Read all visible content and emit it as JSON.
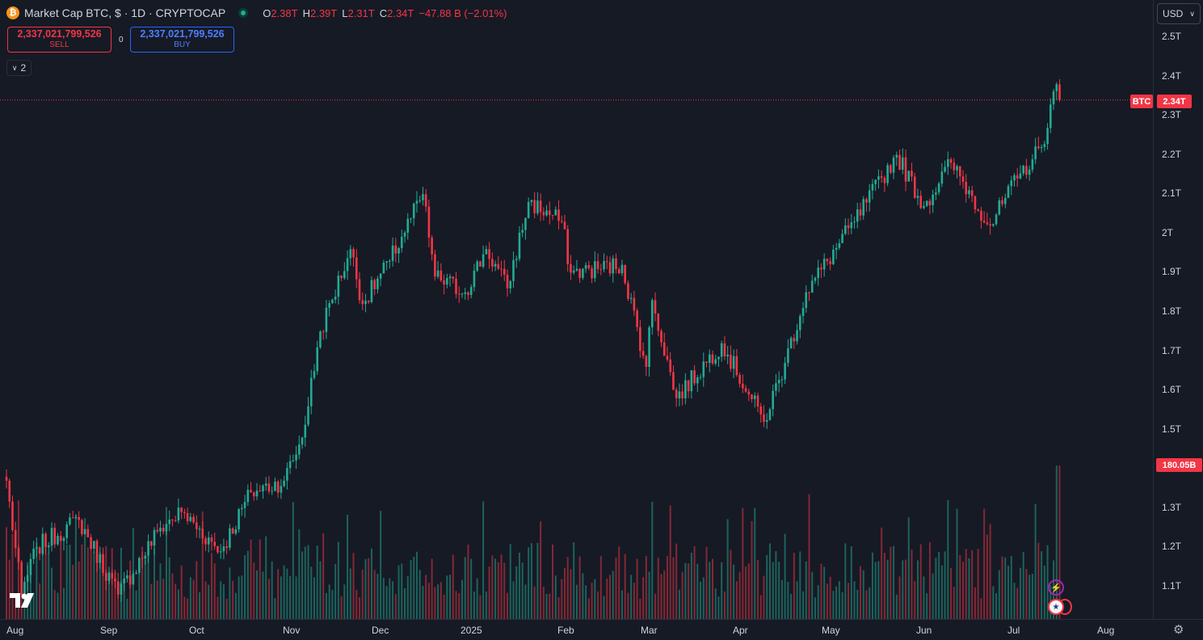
{
  "header": {
    "coin_icon_glyph": "₿",
    "title": "Market Cap BTC, $ · 1D · CRYPTOCAP",
    "ohlc": {
      "o_key": "O",
      "o_val": "2.38T",
      "h_key": "H",
      "h_val": "2.39T",
      "l_key": "L",
      "l_val": "2.31T",
      "c_key": "C",
      "c_val": "2.34T",
      "change": "−47.88 B (−2.01%)"
    }
  },
  "trade": {
    "sell_value": "2,337,021,799,526",
    "sell_label": "SELL",
    "spread": "0",
    "buy_value": "2,337,021,799,526",
    "buy_label": "BUY"
  },
  "indicators_toggle": {
    "count": "2"
  },
  "currency": {
    "selected": "USD"
  },
  "price_axis": {
    "ticks": [
      "2.5T",
      "2.4T",
      "2.3T",
      "2.2T",
      "2.1T",
      "2T",
      "1.9T",
      "1.8T",
      "1.7T",
      "1.6T",
      "1.5T",
      "1.3T",
      "1.2T",
      "1.1T"
    ],
    "last_price_symbol": "BTC",
    "last_price_label": "2.34T",
    "volume_label": "180.05B"
  },
  "time_axis": {
    "labels": [
      "Aug",
      "Sep",
      "Oct",
      "Nov",
      "Dec",
      "2025",
      "Feb",
      "Mar",
      "Apr",
      "May",
      "Jun",
      "Jul",
      "Aug"
    ]
  },
  "colors": {
    "up": "#22ab94",
    "down": "#f23645",
    "background": "#161a25"
  },
  "chart_data": {
    "type": "candlestick",
    "title": "Market Cap BTC, $ · 1D · CRYPTOCAP",
    "unit": "USD (T = trillion)",
    "price_range": [
      1.02,
      2.56
    ],
    "last_close": 2.34,
    "anchors": [
      {
        "date": "2024-07-31",
        "close": 1.37
      },
      {
        "date": "2024-08-05",
        "close": 1.08
      },
      {
        "date": "2024-08-10",
        "close": 1.2
      },
      {
        "date": "2024-08-24",
        "close": 1.27
      },
      {
        "date": "2024-09-06",
        "close": 1.08
      },
      {
        "date": "2024-09-20",
        "close": 1.25
      },
      {
        "date": "2024-09-27",
        "close": 1.29
      },
      {
        "date": "2024-10-10",
        "close": 1.19
      },
      {
        "date": "2024-10-20",
        "close": 1.34
      },
      {
        "date": "2024-10-31",
        "close": 1.37
      },
      {
        "date": "2024-11-06",
        "close": 1.48
      },
      {
        "date": "2024-11-12",
        "close": 1.75
      },
      {
        "date": "2024-11-22",
        "close": 1.96
      },
      {
        "date": "2024-11-26",
        "close": 1.82
      },
      {
        "date": "2024-12-05",
        "close": 1.93
      },
      {
        "date": "2024-12-16",
        "close": 2.1
      },
      {
        "date": "2024-12-20",
        "close": 1.89
      },
      {
        "date": "2024-12-30",
        "close": 1.85
      },
      {
        "date": "2025-01-06",
        "close": 1.96
      },
      {
        "date": "2025-01-13",
        "close": 1.86
      },
      {
        "date": "2025-01-20",
        "close": 2.08
      },
      {
        "date": "2025-01-31",
        "close": 2.03
      },
      {
        "date": "2025-02-03",
        "close": 1.9
      },
      {
        "date": "2025-02-20",
        "close": 1.92
      },
      {
        "date": "2025-02-28",
        "close": 1.66
      },
      {
        "date": "2025-03-02",
        "close": 1.83
      },
      {
        "date": "2025-03-10",
        "close": 1.58
      },
      {
        "date": "2025-03-25",
        "close": 1.72
      },
      {
        "date": "2025-04-08",
        "close": 1.52
      },
      {
        "date": "2025-04-15",
        "close": 1.67
      },
      {
        "date": "2025-04-22",
        "close": 1.85
      },
      {
        "date": "2025-05-08",
        "close": 2.03
      },
      {
        "date": "2025-05-22",
        "close": 2.2
      },
      {
        "date": "2025-05-31",
        "close": 2.07
      },
      {
        "date": "2025-06-09",
        "close": 2.18
      },
      {
        "date": "2025-06-22",
        "close": 2.02
      },
      {
        "date": "2025-07-01",
        "close": 2.14
      },
      {
        "date": "2025-07-09",
        "close": 2.22
      },
      {
        "date": "2025-07-14",
        "close": 2.38
      },
      {
        "date": "2025-07-15",
        "close": 2.34
      }
    ],
    "volume_peak": "180.05B"
  }
}
